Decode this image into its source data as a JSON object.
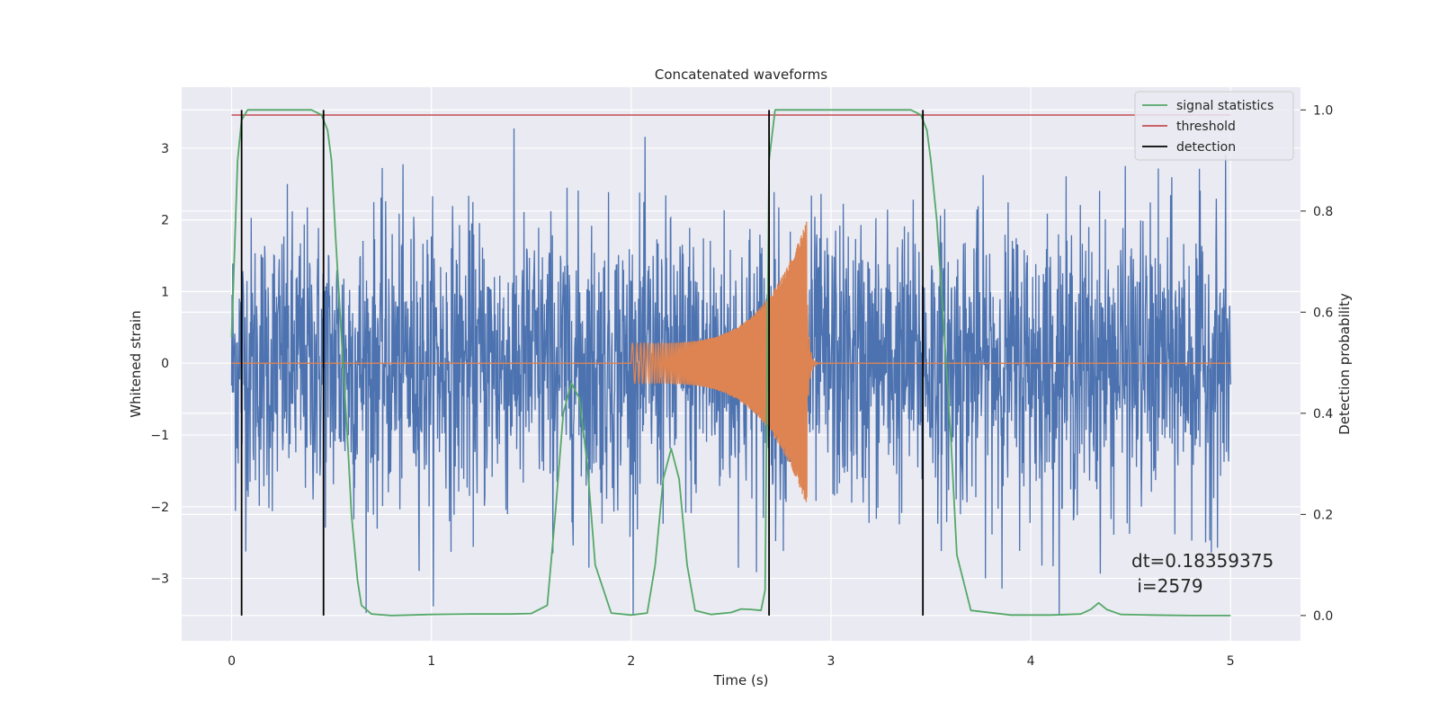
{
  "chart_data": {
    "type": "line",
    "title": "Concatenated waveforms",
    "xlabel": "Time (s)",
    "ylabel": "Whitened strain",
    "y2label": "Detection probability",
    "xlim": [
      -0.25,
      5.35
    ],
    "ylim": [
      -3.87,
      3.85
    ],
    "y2lim": [
      -0.05,
      1.045
    ],
    "x_ticks": [
      0,
      1,
      2,
      3,
      4,
      5
    ],
    "y_ticks": [
      -3,
      -2,
      -1,
      0,
      1,
      2,
      3
    ],
    "y2_ticks": [
      0.0,
      0.2,
      0.4,
      0.6,
      0.8,
      1.0
    ],
    "x_tick_labels": [
      "0",
      "1",
      "2",
      "3",
      "4",
      "5"
    ],
    "y_tick_labels": [
      "−3",
      "−2",
      "−1",
      "0",
      "1",
      "2",
      "3"
    ],
    "y2_tick_labels": [
      "0.0",
      "0.2",
      "0.4",
      "0.6",
      "0.8",
      "1.0"
    ],
    "grid": true,
    "legend": {
      "position": "top-right",
      "entries": [
        {
          "label": "signal statistics",
          "color": "#55a868"
        },
        {
          "label": "threshold",
          "color": "#c44e52"
        },
        {
          "label": "detection",
          "color": "#000000"
        }
      ]
    },
    "series": [
      {
        "name": "",
        "axis": "left",
        "color": "#4c72b0",
        "description_values": {
          "x_range": [
            0,
            5
          ],
          "typical_amplitude": 1.0,
          "peak_amplitude": 3.5
        }
      },
      {
        "name": "",
        "axis": "left",
        "color": "#dd8452",
        "chirp": {
          "x_start": 2.0,
          "x_end": 2.88,
          "amplitude_start": 0.28,
          "amplitude_peak": 2.0
        }
      },
      {
        "name": "signal statistics",
        "axis": "right",
        "color": "#55a868",
        "x": [
          0.0,
          0.03,
          0.05,
          0.08,
          0.1,
          0.2,
          0.3,
          0.4,
          0.45,
          0.48,
          0.5,
          0.52,
          0.55,
          0.58,
          0.6,
          0.63,
          0.65,
          0.7,
          0.8,
          1.0,
          1.2,
          1.4,
          1.5,
          1.58,
          1.62,
          1.66,
          1.7,
          1.74,
          1.78,
          1.82,
          1.9,
          2.0,
          2.08,
          2.12,
          2.16,
          2.2,
          2.24,
          2.28,
          2.32,
          2.4,
          2.5,
          2.55,
          2.6,
          2.65,
          2.67,
          2.69,
          2.72,
          2.8,
          3.0,
          3.2,
          3.4,
          3.45,
          3.48,
          3.5,
          3.53,
          3.56,
          3.6,
          3.63,
          3.7,
          3.9,
          4.1,
          4.25,
          4.3,
          4.34,
          4.38,
          4.45,
          4.6,
          4.8,
          5.0
        ],
        "y": [
          0.55,
          0.9,
          0.98,
          1.0,
          1.0,
          1.0,
          1.0,
          1.0,
          0.99,
          0.96,
          0.9,
          0.75,
          0.55,
          0.35,
          0.2,
          0.07,
          0.02,
          0.003,
          0.0,
          0.002,
          0.003,
          0.003,
          0.004,
          0.02,
          0.2,
          0.4,
          0.46,
          0.43,
          0.3,
          0.1,
          0.005,
          0.001,
          0.005,
          0.1,
          0.27,
          0.33,
          0.27,
          0.1,
          0.01,
          0.002,
          0.006,
          0.013,
          0.012,
          0.01,
          0.05,
          0.9,
          1.0,
          1.0,
          1.0,
          1.0,
          1.0,
          0.99,
          0.96,
          0.9,
          0.78,
          0.6,
          0.35,
          0.12,
          0.01,
          0.001,
          0.001,
          0.003,
          0.012,
          0.025,
          0.012,
          0.002,
          0.001,
          0.0,
          0.0
        ]
      },
      {
        "name": "threshold",
        "axis": "right",
        "color": "#c44e52",
        "x": [
          0,
          5
        ],
        "y": [
          0.99,
          0.99
        ]
      }
    ],
    "detections": [
      0.05,
      0.46,
      2.69,
      3.46
    ],
    "detection_color": "#000000",
    "annotation": [
      "dt=0.18359375",
      " i=2579"
    ]
  }
}
